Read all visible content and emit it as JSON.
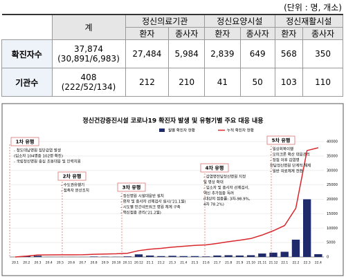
{
  "unit_note": "(단위 : 명, 개소)",
  "table": {
    "header": {
      "total": "계",
      "groups": [
        "정신의료기관",
        "정신요양시설",
        "정신재활시설"
      ],
      "sub": [
        "환자",
        "종사자",
        "환자",
        "종사자",
        "환자",
        "종사자"
      ]
    },
    "rows": [
      {
        "label": "확진자수",
        "total": "37,874",
        "total_detail": "(30,891/6,983)",
        "cells": [
          "27,484",
          "5,984",
          "2,839",
          "649",
          "568",
          "350"
        ]
      },
      {
        "label": "기관수",
        "total": "408",
        "total_detail": "(222/52/134)",
        "cells": [
          "212",
          "210",
          "41",
          "50",
          "103",
          "110"
        ]
      }
    ]
  },
  "chart_data": {
    "type": "bar",
    "title": "정신건강증진시설 코로나19 확진자 발생 및 유형기별 주요 대응 내용",
    "categories": [
      "20.1",
      "20.2",
      "20.3",
      "20.4",
      "20.5",
      "20.6",
      "20.7",
      "20.8",
      "20.9",
      "20.10",
      "20.11",
      "20.12",
      "21.1",
      "21.2",
      "21.3",
      "21.4",
      "21.5",
      "21.6",
      "21.7",
      "21.8",
      "21.9",
      "21.10",
      "21.11",
      "21.12",
      "22.1",
      "22.2",
      "22.3",
      "22.4"
    ],
    "series": [
      {
        "name": "월별 확진자 현황",
        "kind": "bar",
        "color": "#1f2a6b",
        "values": [
          0,
          300,
          400,
          30,
          10,
          20,
          10,
          150,
          100,
          80,
          200,
          900,
          500,
          300,
          400,
          300,
          300,
          200,
          500,
          600,
          500,
          600,
          1200,
          1500,
          1800,
          6000,
          20000,
          974
        ]
      },
      {
        "name": "누적 확진자 현황",
        "kind": "line",
        "color": "#d9262b",
        "values": [
          0,
          300,
          700,
          730,
          740,
          760,
          770,
          920,
          1020,
          1100,
          1300,
          2200,
          2700,
          3000,
          3400,
          3700,
          4000,
          4200,
          4700,
          5300,
          5800,
          6400,
          7600,
          9100,
          10900,
          16900,
          36900,
          37874
        ]
      }
    ],
    "ylim": [
      0,
      40000
    ],
    "yticks": [
      0,
      5000,
      10000,
      15000,
      20000,
      25000,
      30000,
      35000,
      40000
    ],
    "annotations": [
      {
        "label": "1차 유행",
        "notes": [
          "- 청도대남병원 집단감염 발생",
          "(입소자 104명중 102명 확진)",
          "- 국립정신병원 중심 초동대응 및 인력지원"
        ]
      },
      {
        "label": "2차 유행",
        "notes": [
          "- 수도권유행기",
          "- 접촉자 분산조치"
        ]
      },
      {
        "label": "3차 유행",
        "notes": [
          "- 정신병원 시설대응반 설치",
          "- 환자 및 종사자 선제검사 실시('21.1월)",
          "- 시도별 민간네트워크 병원 체계 구축",
          "- 백신접종 관리('21.2월)"
        ]
      },
      {
        "label": "4차 유행",
        "notes": [
          "- 감염병전담정신병원 지정",
          "및 병상 확대",
          "- 입소자 및 종사자 선제검사,",
          "백신 추가접종 독려",
          "(대상자 접종률: 3차-98.9%,",
          "4차 78.2%)"
        ]
      },
      {
        "label": "5차 유행",
        "notes": [
          "- 일상회복이행",
          "- 오미크론 확산 대응관리",
          "- 정점 이후 감염병",
          "전담정신병원 단계적 해제",
          "- 일반 의료체계 전환"
        ]
      }
    ]
  }
}
